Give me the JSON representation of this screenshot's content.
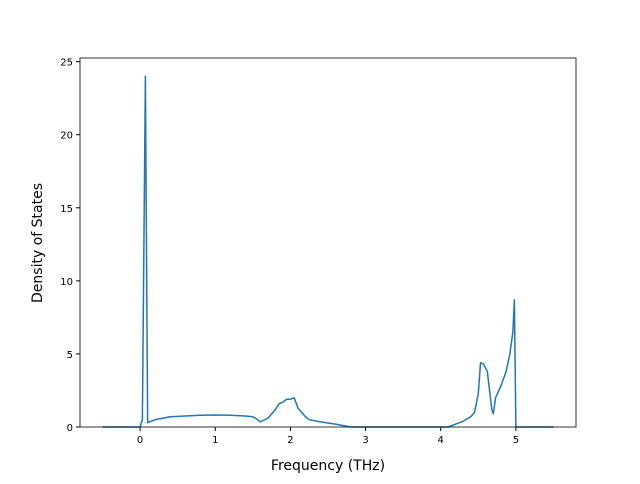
{
  "chart_data": {
    "type": "line",
    "xlabel": "Frequency (THz)",
    "ylabel": "Density of States",
    "x": [
      -0.5,
      0.0,
      0.03,
      0.07,
      0.1,
      0.15,
      0.2,
      0.3,
      0.4,
      0.6,
      0.8,
      1.0,
      1.2,
      1.4,
      1.5,
      1.55,
      1.6,
      1.7,
      1.75,
      1.8,
      1.85,
      1.9,
      1.95,
      2.0,
      2.05,
      2.1,
      2.2,
      2.25,
      2.4,
      2.6,
      2.8,
      4.1,
      4.2,
      4.3,
      4.4,
      4.45,
      4.5,
      4.53,
      4.57,
      4.62,
      4.65,
      4.68,
      4.7,
      4.73,
      4.8,
      4.87,
      4.92,
      4.96,
      4.98,
      5.0,
      5.5
    ],
    "series": [
      {
        "color": "#1f77b4",
        "values": [
          0,
          0,
          0.5,
          24,
          0.3,
          0.4,
          0.5,
          0.6,
          0.7,
          0.75,
          0.8,
          0.82,
          0.8,
          0.75,
          0.7,
          0.55,
          0.35,
          0.6,
          0.9,
          1.2,
          1.6,
          1.7,
          1.9,
          1.9,
          2.0,
          1.3,
          0.7,
          0.5,
          0.35,
          0.2,
          0,
          0,
          0.2,
          0.4,
          0.7,
          1.0,
          2.3,
          4.4,
          4.3,
          3.8,
          2.5,
          1.2,
          0.9,
          2.0,
          2.8,
          3.8,
          5.0,
          6.5,
          8.7,
          0,
          0
        ]
      }
    ],
    "xlim": [
      -0.8,
      5.8
    ],
    "ylim": [
      0,
      25.25
    ],
    "xticks": [
      0,
      1,
      2,
      3,
      4,
      5
    ],
    "yticks": [
      0,
      5,
      10,
      15,
      20,
      25
    ]
  }
}
